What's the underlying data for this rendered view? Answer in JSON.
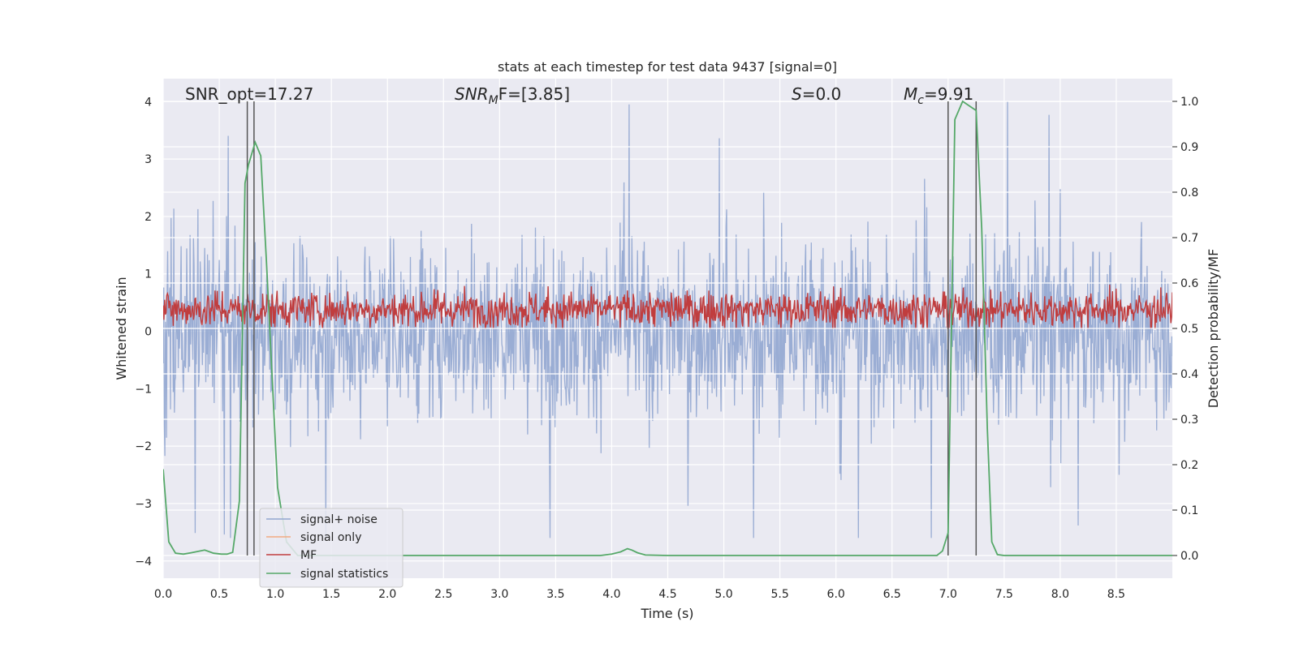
{
  "chart_data": {
    "type": "line",
    "title": "stats at each timestep for test data 9437 [signal=0]",
    "xlabel": "Time (s)",
    "ylabel_left": "Whitened strain",
    "ylabel_right": "Detection probability/MF",
    "xlim": [
      0,
      9.0
    ],
    "ylim_left": [
      -4.3,
      4.4
    ],
    "ylim_right": [
      -0.05,
      1.05
    ],
    "x_ticks": [
      0.0,
      0.5,
      1.0,
      1.5,
      2.0,
      2.5,
      3.0,
      3.5,
      4.0,
      4.5,
      5.0,
      5.5,
      6.0,
      6.5,
      7.0,
      7.5,
      8.0,
      8.5
    ],
    "x_tick_labels": [
      "0.0",
      "0.5",
      "1.0",
      "1.5",
      "2.0",
      "2.5",
      "3.0",
      "3.5",
      "4.0",
      "4.5",
      "5.0",
      "5.5",
      "6.0",
      "6.5",
      "7.0",
      "7.5",
      "8.0",
      "8.5"
    ],
    "y_left_ticks": [
      -4,
      -3,
      -2,
      -1,
      0,
      1,
      2,
      3,
      4
    ],
    "y_left_tick_labels": [
      "−4",
      "−3",
      "−2",
      "−1",
      "0",
      "1",
      "2",
      "3",
      "4"
    ],
    "y_right_ticks": [
      0.0,
      0.1,
      0.2,
      0.3,
      0.4,
      0.5,
      0.6,
      0.7,
      0.8,
      0.9,
      1.0
    ],
    "y_right_tick_labels": [
      "0.0",
      "0.1",
      "0.2",
      "0.3",
      "0.4",
      "0.5",
      "0.6",
      "0.7",
      "0.8",
      "0.9",
      "1.0"
    ],
    "annotations": {
      "snr_opt": "SNR_opt=17.27",
      "snr_mf_main": "SNR",
      "snr_mf_sub": "M",
      "snr_mf_rest": "F=[3.85]",
      "s_main": "S",
      "s_rest": "=0.0",
      "mc_main": "M",
      "mc_sub": "c",
      "mc_rest": "=9.91"
    },
    "vlines": [
      0.75,
      0.81,
      7.0,
      7.25
    ],
    "legend": {
      "placement": "lower-left",
      "entries": [
        {
          "label": "signal+ noise",
          "color": "#91a6d0"
        },
        {
          "label": "signal only",
          "color": "#f1a981"
        },
        {
          "label": "MF",
          "color": "#c03d3e"
        },
        {
          "label": "signal statistics",
          "color": "#55a868"
        }
      ]
    },
    "series": [
      {
        "name": "signal statistics",
        "axis": "right",
        "color": "#55a868",
        "x": [
          0.0,
          0.05,
          0.11,
          0.18,
          0.25,
          0.37,
          0.45,
          0.52,
          0.57,
          0.62,
          0.68,
          0.73,
          0.76,
          0.82,
          0.87,
          0.92,
          0.97,
          1.02,
          1.1,
          1.2,
          1.4,
          2.0,
          3.0,
          3.9,
          4.0,
          4.08,
          4.14,
          4.18,
          4.23,
          4.3,
          4.5,
          5.0,
          6.0,
          6.9,
          6.95,
          7.0,
          7.06,
          7.13,
          7.19,
          7.25,
          7.3,
          7.35,
          7.39,
          7.44,
          7.5,
          8.0,
          9.0
        ],
        "y": [
          0.19,
          0.03,
          0.005,
          0.003,
          0.006,
          0.012,
          0.005,
          0.003,
          0.003,
          0.007,
          0.12,
          0.82,
          0.86,
          0.91,
          0.88,
          0.65,
          0.4,
          0.15,
          0.03,
          0.0,
          0.0,
          0.0,
          0.0,
          0.0,
          0.003,
          0.008,
          0.015,
          0.012,
          0.006,
          0.001,
          0.0,
          0.0,
          0.0,
          0.0,
          0.01,
          0.05,
          0.96,
          1.0,
          0.99,
          0.98,
          0.72,
          0.28,
          0.03,
          0.002,
          0.0,
          0.0,
          0.0
        ]
      },
      {
        "name": "signal+ noise",
        "axis": "left",
        "color": "#91a6d0",
        "description_values": "dense noise trace, envelope about ±1.5 with spikes to +4.0 and −3.6"
      },
      {
        "name": "MF",
        "axis": "left",
        "color": "#c03d3e",
        "description_values": "dense trace oscillating between about 0.05 and 0.9"
      }
    ]
  }
}
